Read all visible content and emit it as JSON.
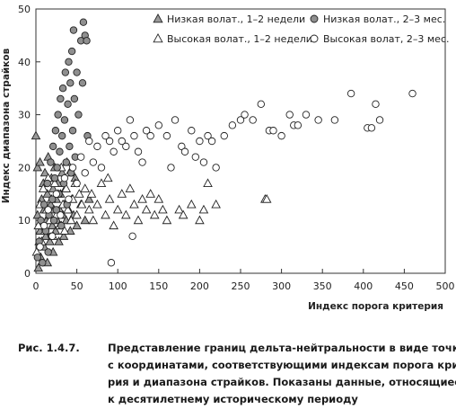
{
  "chart_data": {
    "type": "scatter",
    "xlabel": "Индекс порога критерия",
    "ylabel": "Индекс диапазона страйков",
    "xlim": [
      0,
      500
    ],
    "ylim": [
      0,
      50
    ],
    "x_ticks": [
      0,
      50,
      100,
      150,
      200,
      250,
      300,
      350,
      400,
      450,
      500
    ],
    "y_ticks": [
      0,
      10,
      20,
      30,
      40,
      50
    ],
    "grid": false,
    "legend_position": "top",
    "series": [
      {
        "name": "Низкая волат., 1–2 недели",
        "marker": "triangle-filled",
        "color": "#9a9a9a",
        "points": [
          [
            0,
            26
          ],
          [
            2,
            20
          ],
          [
            2,
            11
          ],
          [
            3,
            1
          ],
          [
            4,
            6
          ],
          [
            5,
            8
          ],
          [
            5,
            21
          ],
          [
            6,
            3
          ],
          [
            7,
            14
          ],
          [
            8,
            9
          ],
          [
            9,
            17
          ],
          [
            10,
            5
          ],
          [
            10,
            12
          ],
          [
            11,
            19
          ],
          [
            12,
            7
          ],
          [
            13,
            10
          ],
          [
            14,
            2
          ],
          [
            14,
            15
          ],
          [
            15,
            22
          ],
          [
            16,
            11
          ],
          [
            17,
            6
          ],
          [
            18,
            13
          ],
          [
            19,
            18
          ],
          [
            20,
            9
          ],
          [
            21,
            4
          ],
          [
            21,
            16
          ],
          [
            22,
            12
          ],
          [
            23,
            20
          ],
          [
            24,
            8
          ],
          [
            25,
            14
          ],
          [
            26,
            10
          ],
          [
            27,
            17
          ],
          [
            28,
            6
          ],
          [
            29,
            12
          ],
          [
            30,
            15
          ],
          [
            31,
            9
          ],
          [
            32,
            19
          ],
          [
            33,
            11
          ],
          [
            34,
            7
          ],
          [
            35,
            13
          ],
          [
            36,
            16
          ],
          [
            37,
            10
          ],
          [
            38,
            21
          ],
          [
            40,
            12
          ],
          [
            42,
            8
          ],
          [
            44,
            14
          ],
          [
            46,
            11
          ],
          [
            48,
            18
          ],
          [
            50,
            9
          ],
          [
            55,
            13
          ],
          [
            60,
            10
          ],
          [
            65,
            14
          ]
        ]
      },
      {
        "name": "Высокая волат., 1–2 недели",
        "marker": "triangle-open",
        "color": "#ffffff",
        "points": [
          [
            1,
            4
          ],
          [
            3,
            9
          ],
          [
            5,
            13
          ],
          [
            7,
            6
          ],
          [
            9,
            16
          ],
          [
            11,
            8
          ],
          [
            13,
            12
          ],
          [
            15,
            18
          ],
          [
            17,
            10
          ],
          [
            19,
            14
          ],
          [
            21,
            7
          ],
          [
            23,
            17
          ],
          [
            25,
            11
          ],
          [
            27,
            15
          ],
          [
            29,
            9
          ],
          [
            31,
            20
          ],
          [
            33,
            13
          ],
          [
            35,
            8
          ],
          [
            37,
            16
          ],
          [
            39,
            12
          ],
          [
            41,
            19
          ],
          [
            43,
            10
          ],
          [
            45,
            14
          ],
          [
            48,
            17
          ],
          [
            50,
            11
          ],
          [
            53,
            15
          ],
          [
            56,
            13
          ],
          [
            60,
            16
          ],
          [
            65,
            12
          ],
          [
            68,
            15
          ],
          [
            70,
            10
          ],
          [
            75,
            13
          ],
          [
            80,
            17
          ],
          [
            85,
            11
          ],
          [
            88,
            18
          ],
          [
            90,
            14
          ],
          [
            95,
            9
          ],
          [
            100,
            12
          ],
          [
            105,
            15
          ],
          [
            110,
            11
          ],
          [
            115,
            16
          ],
          [
            120,
            13
          ],
          [
            125,
            10
          ],
          [
            130,
            14
          ],
          [
            135,
            12
          ],
          [
            140,
            15
          ],
          [
            145,
            11
          ],
          [
            150,
            14
          ],
          [
            155,
            12
          ],
          [
            160,
            10
          ],
          [
            175,
            12
          ],
          [
            180,
            11
          ],
          [
            190,
            13
          ],
          [
            200,
            10
          ],
          [
            205,
            12
          ],
          [
            210,
            17
          ],
          [
            220,
            13
          ],
          [
            280,
            14
          ],
          [
            282,
            14
          ]
        ]
      },
      {
        "name": "Низкая волат., 2–3 мес.",
        "marker": "circle-filled",
        "color": "#8f8f8f",
        "points": [
          [
            2,
            3
          ],
          [
            4,
            6
          ],
          [
            6,
            10
          ],
          [
            8,
            2
          ],
          [
            10,
            13
          ],
          [
            12,
            8
          ],
          [
            14,
            17
          ],
          [
            15,
            4
          ],
          [
            16,
            11
          ],
          [
            18,
            21
          ],
          [
            19,
            7
          ],
          [
            20,
            14
          ],
          [
            21,
            24
          ],
          [
            22,
            10
          ],
          [
            23,
            18
          ],
          [
            24,
            27
          ],
          [
            25,
            12
          ],
          [
            26,
            20
          ],
          [
            27,
            30
          ],
          [
            28,
            15
          ],
          [
            29,
            23
          ],
          [
            30,
            33
          ],
          [
            31,
            9
          ],
          [
            32,
            26
          ],
          [
            33,
            35
          ],
          [
            34,
            17
          ],
          [
            35,
            29
          ],
          [
            36,
            38
          ],
          [
            37,
            21
          ],
          [
            38,
            13
          ],
          [
            39,
            32
          ],
          [
            40,
            40
          ],
          [
            41,
            24
          ],
          [
            42,
            36
          ],
          [
            43,
            19
          ],
          [
            44,
            42
          ],
          [
            45,
            27
          ],
          [
            46,
            46
          ],
          [
            47,
            33
          ],
          [
            48,
            22
          ],
          [
            50,
            38
          ],
          [
            52,
            30
          ],
          [
            55,
            44
          ],
          [
            57,
            36
          ],
          [
            58,
            47.5
          ],
          [
            60,
            45
          ],
          [
            62,
            44
          ],
          [
            63,
            26
          ]
        ]
      },
      {
        "name": "Высокая волат, 2–3 мес.",
        "marker": "circle-open",
        "color": "#ffffff",
        "points": [
          [
            5,
            5
          ],
          [
            10,
            9
          ],
          [
            15,
            12
          ],
          [
            20,
            7
          ],
          [
            25,
            15
          ],
          [
            30,
            11
          ],
          [
            35,
            18
          ],
          [
            40,
            14
          ],
          [
            45,
            20
          ],
          [
            50,
            17
          ],
          [
            55,
            22
          ],
          [
            60,
            19
          ],
          [
            65,
            25
          ],
          [
            70,
            21
          ],
          [
            75,
            24
          ],
          [
            80,
            20
          ],
          [
            85,
            26
          ],
          [
            90,
            25
          ],
          [
            92,
            2
          ],
          [
            95,
            23
          ],
          [
            100,
            27
          ],
          [
            105,
            25
          ],
          [
            110,
            24
          ],
          [
            115,
            29
          ],
          [
            118,
            7
          ],
          [
            120,
            26
          ],
          [
            125,
            23
          ],
          [
            130,
            21
          ],
          [
            135,
            27
          ],
          [
            140,
            26
          ],
          [
            150,
            28
          ],
          [
            160,
            26
          ],
          [
            165,
            20
          ],
          [
            170,
            29
          ],
          [
            178,
            24
          ],
          [
            182,
            23
          ],
          [
            190,
            27
          ],
          [
            195,
            22
          ],
          [
            200,
            25
          ],
          [
            205,
            21
          ],
          [
            210,
            26
          ],
          [
            215,
            25
          ],
          [
            220,
            20
          ],
          [
            230,
            26
          ],
          [
            240,
            28
          ],
          [
            250,
            29
          ],
          [
            255,
            30
          ],
          [
            265,
            29
          ],
          [
            275,
            32
          ],
          [
            285,
            27
          ],
          [
            290,
            27
          ],
          [
            300,
            26
          ],
          [
            310,
            30
          ],
          [
            315,
            28
          ],
          [
            320,
            28
          ],
          [
            330,
            30
          ],
          [
            345,
            29
          ],
          [
            365,
            29
          ],
          [
            385,
            34
          ],
          [
            405,
            27.5
          ],
          [
            410,
            27.5
          ],
          [
            415,
            32
          ],
          [
            420,
            29
          ],
          [
            460,
            34
          ]
        ]
      }
    ]
  },
  "caption": {
    "label": "Рис. 1.4.7.",
    "lines": [
      "Представление границ дельта-нейтральности в виде точки",
      "с координатами, соответствующими индексам порога крите-",
      "рия и диапазона страйков. Показаны данные, относящиеся",
      "к десятилетнему историческому периоду"
    ]
  }
}
